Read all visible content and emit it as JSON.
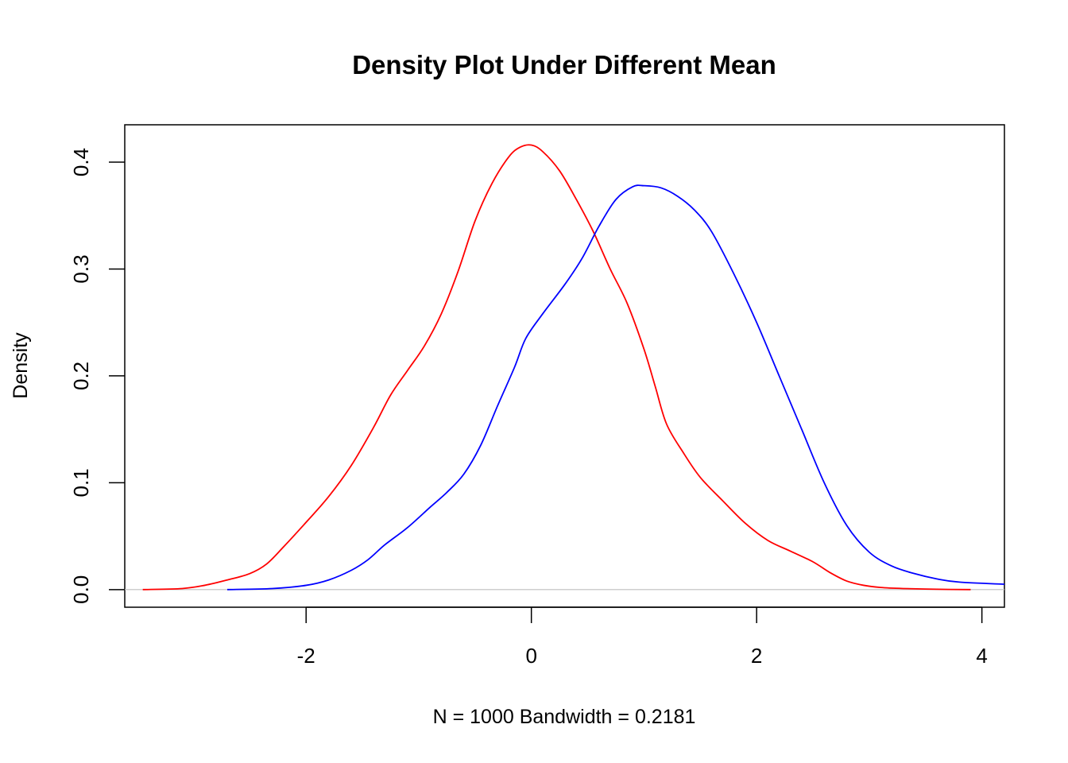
{
  "chart_data": {
    "type": "line",
    "title": "Density Plot Under Different Mean",
    "xlabel": "N = 1000   Bandwidth = 0.2181",
    "ylabel": "Density",
    "xlim": [
      -3.61,
      4.2
    ],
    "ylim": [
      -0.0165,
      0.435
    ],
    "x_ticks": [
      -2,
      0,
      2,
      4
    ],
    "x_tick_labels": [
      "-2",
      "0",
      "2",
      "4"
    ],
    "y_ticks": [
      0.0,
      0.1,
      0.2,
      0.3,
      0.4
    ],
    "y_tick_labels": [
      "0.0",
      "0.1",
      "0.2",
      "0.3",
      "0.4"
    ],
    "baseline": 0,
    "baseline_color": "#bebebe",
    "series": [
      {
        "color": "#ff0000",
        "x": [
          -3.45,
          -3.1,
          -2.9,
          -2.7,
          -2.5,
          -2.35,
          -2.2,
          -2.0,
          -1.8,
          -1.6,
          -1.4,
          -1.25,
          -1.1,
          -0.95,
          -0.8,
          -0.65,
          -0.5,
          -0.35,
          -0.2,
          -0.1,
          0.0,
          0.1,
          0.25,
          0.4,
          0.55,
          0.7,
          0.85,
          1.0,
          1.1,
          1.2,
          1.35,
          1.5,
          1.7,
          1.9,
          2.1,
          2.3,
          2.5,
          2.65,
          2.8,
          2.95,
          3.1,
          3.3,
          3.6,
          3.9
        ],
        "y": [
          0.0,
          0.001,
          0.004,
          0.009,
          0.015,
          0.024,
          0.04,
          0.063,
          0.087,
          0.116,
          0.152,
          0.182,
          0.205,
          0.228,
          0.258,
          0.298,
          0.345,
          0.38,
          0.405,
          0.414,
          0.416,
          0.41,
          0.392,
          0.365,
          0.335,
          0.3,
          0.268,
          0.225,
          0.19,
          0.155,
          0.128,
          0.105,
          0.083,
          0.062,
          0.046,
          0.036,
          0.026,
          0.016,
          0.008,
          0.004,
          0.002,
          0.001,
          0.0003,
          0.0
        ],
        "y_note": "density estimate"
      },
      {
        "color": "#0000ff",
        "x": [
          -2.7,
          -2.3,
          -2.0,
          -1.8,
          -1.6,
          -1.45,
          -1.3,
          -1.1,
          -0.9,
          -0.75,
          -0.6,
          -0.45,
          -0.3,
          -0.15,
          -0.05,
          0.1,
          0.3,
          0.45,
          0.6,
          0.75,
          0.9,
          1.0,
          1.15,
          1.3,
          1.45,
          1.6,
          1.8,
          2.0,
          2.2,
          2.4,
          2.6,
          2.8,
          3.0,
          3.2,
          3.4,
          3.6,
          3.8,
          4.2
        ],
        "y": [
          0.0,
          0.001,
          0.004,
          0.009,
          0.018,
          0.028,
          0.042,
          0.058,
          0.077,
          0.091,
          0.108,
          0.135,
          0.172,
          0.208,
          0.235,
          0.258,
          0.286,
          0.31,
          0.34,
          0.365,
          0.377,
          0.378,
          0.376,
          0.368,
          0.355,
          0.335,
          0.295,
          0.25,
          0.2,
          0.15,
          0.1,
          0.06,
          0.035,
          0.022,
          0.015,
          0.01,
          0.007,
          0.005
        ]
      }
    ]
  }
}
